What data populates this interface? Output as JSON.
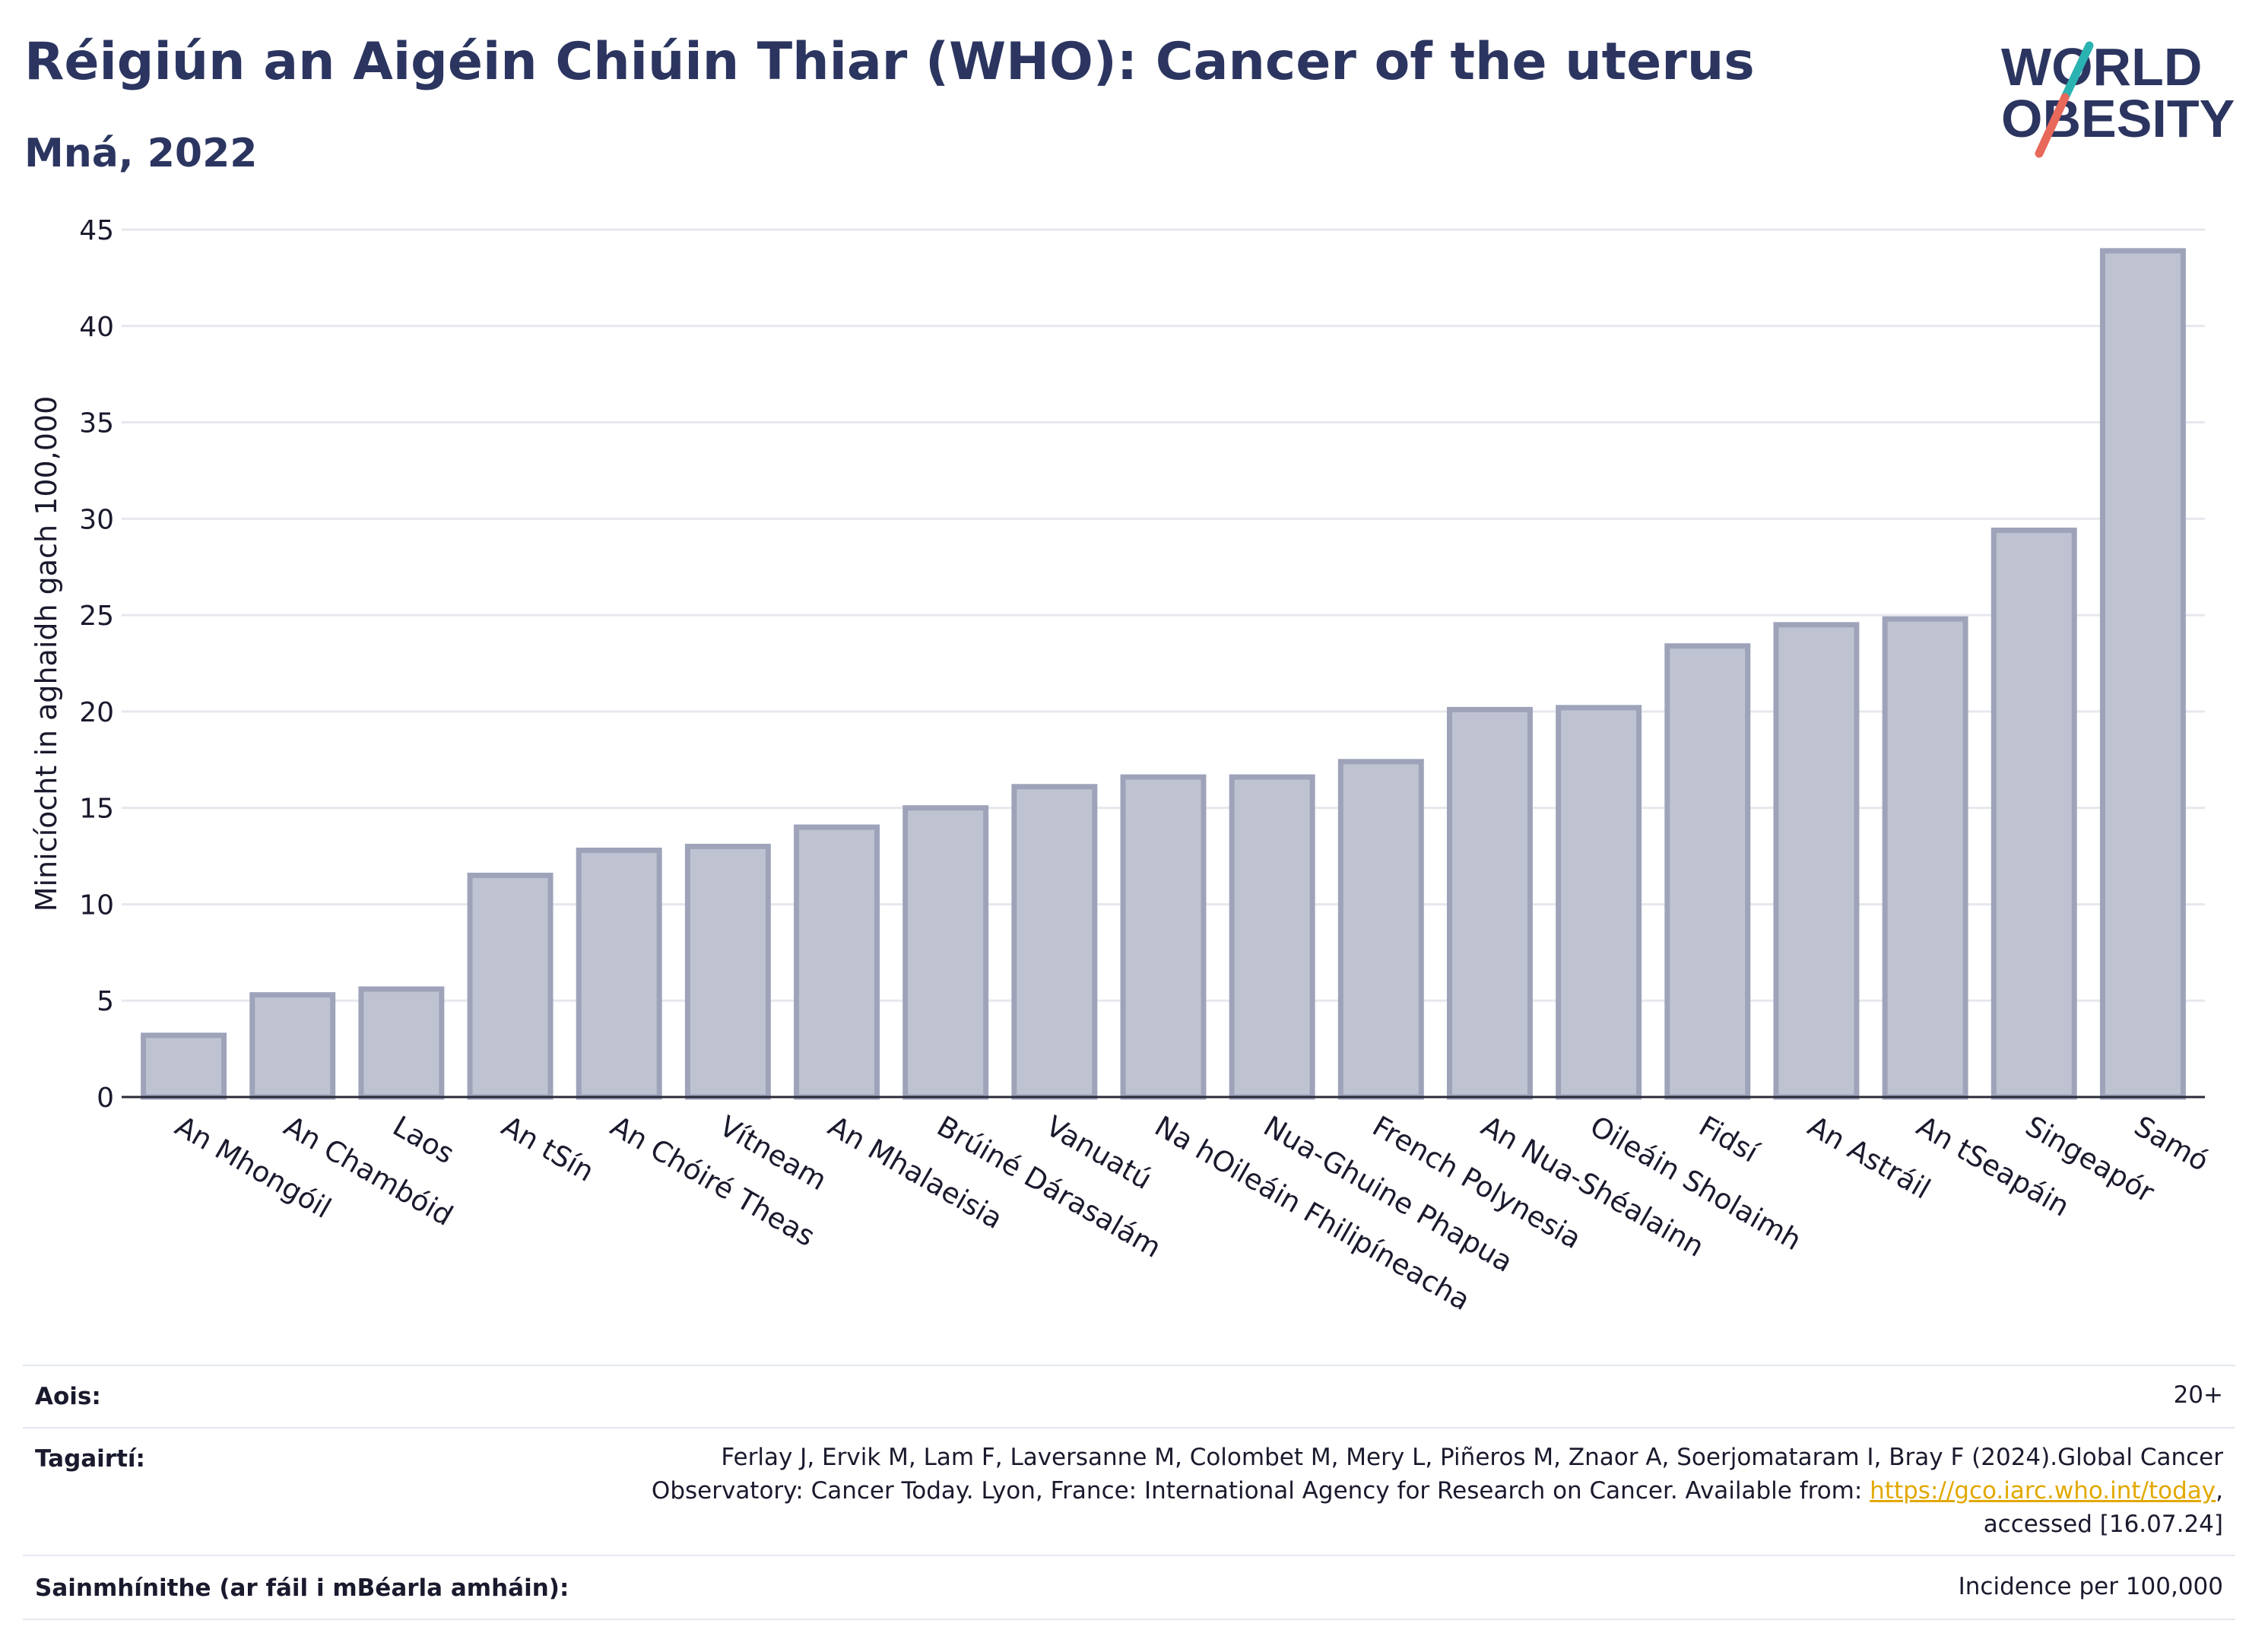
{
  "header": {
    "title": "Réigiún an Aigéin Chiúin Thiar (WHO): Cancer of the uterus",
    "subtitle": "Mná, 2022"
  },
  "logo": {
    "line1": "WORLD",
    "line2": "OBESITY"
  },
  "chart_data": {
    "type": "bar",
    "ylabel": "Minicíocht in aghaidh gach 100,000",
    "xlabel": "",
    "ylim": [
      0,
      45
    ],
    "yticks": [
      0,
      5,
      10,
      15,
      20,
      25,
      30,
      35,
      40,
      45
    ],
    "grid": true,
    "bar_color": "#bfc3d1",
    "bar_edge_color": "#9ea3ba",
    "categories": [
      "An Mhongóil",
      "An Chambóid",
      "Laos",
      "An tSín",
      "An Chóiré Theas",
      "Vítneam",
      "An Mhalaeisia",
      "Brúiné Dárasalám",
      "Vanuatú",
      "Na hOileáin Fhilipíneacha",
      "Nua-Ghuine Phapua",
      "French Polynesia",
      "An Nua-Shéalainn",
      "Oileáin Sholaimh",
      "Fidsí",
      "An Astráil",
      "An tSeapáin",
      "Singeapór",
      "Samó"
    ],
    "values": [
      3.2,
      5.3,
      5.6,
      11.5,
      12.8,
      13.0,
      14.0,
      15.0,
      16.1,
      16.6,
      16.6,
      17.4,
      20.1,
      20.2,
      23.4,
      24.5,
      24.8,
      29.4,
      43.9
    ]
  },
  "meta": {
    "age_label": "Aois:",
    "age_value": "20+",
    "refs_label": "Tagairtí:",
    "refs_line1": "Ferlay J, Ervik M, Lam F, Laversanne M, Colombet M, Mery L, Piñeros M, Znaor A, Soerjomataram I, Bray F (2024).Global Cancer",
    "refs_line2_pre": "Observatory: Cancer Today. Lyon, France: International Agency for Research on Cancer. Available from: ",
    "refs_link": "https://gco.iarc.who.int/today",
    "refs_line2_post": ",",
    "refs_line3": "accessed [16.07.24]",
    "def_label": "Sainmhínithe (ar fáil i mBéarla amháin):",
    "def_value": "Incidence per 100,000"
  },
  "colors": {
    "title": "#2b3560",
    "logo_teal": "#2bb3b1",
    "logo_coral": "#e8685a",
    "link": "#e2a800"
  }
}
